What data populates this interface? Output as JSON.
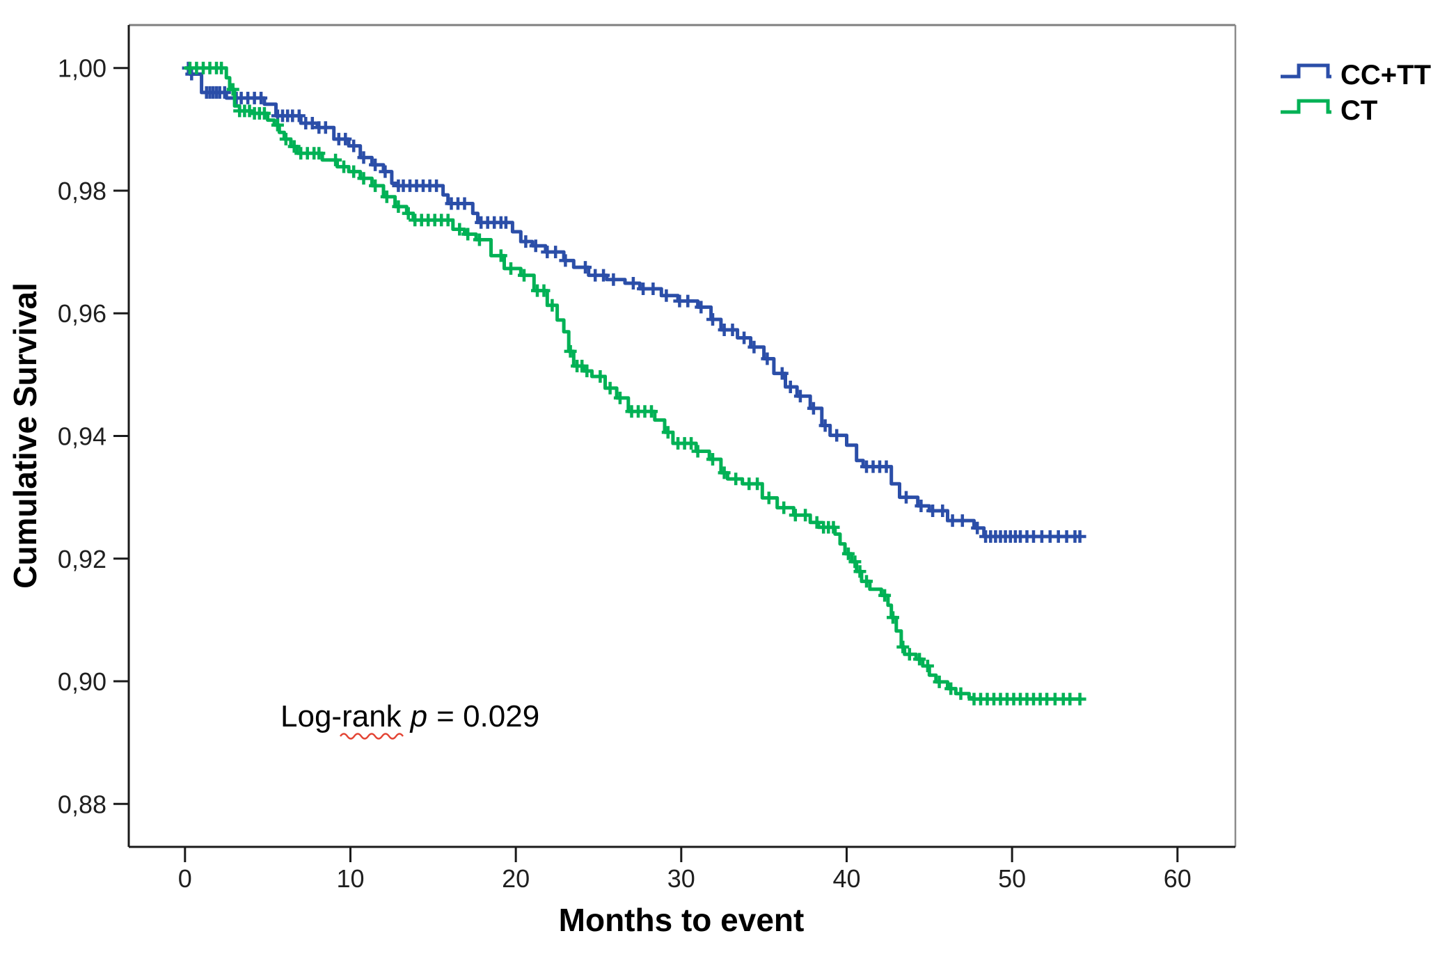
{
  "chart_data": {
    "type": "line",
    "subtype": "kaplan-meier-step-survival",
    "title": "",
    "xlabel": "Months to event",
    "ylabel": "Cumulative Survival",
    "xlim": [
      -3.4,
      63.5
    ],
    "ylim": [
      0.873,
      1.007
    ],
    "grid": false,
    "x_ticks": [
      {
        "value": 0,
        "label": "0"
      },
      {
        "value": 10,
        "label": "10"
      },
      {
        "value": 20,
        "label": "20"
      },
      {
        "value": 30,
        "label": "30"
      },
      {
        "value": 40,
        "label": "40"
      },
      {
        "value": 50,
        "label": "50"
      },
      {
        "value": 60,
        "label": "60"
      }
    ],
    "y_ticks": [
      {
        "value": 1.0,
        "label": "1,00"
      },
      {
        "value": 0.98,
        "label": "0,98"
      },
      {
        "value": 0.96,
        "label": "0,96"
      },
      {
        "value": 0.94,
        "label": "0,94"
      },
      {
        "value": 0.92,
        "label": "0,92"
      },
      {
        "value": 0.9,
        "label": "0,90"
      },
      {
        "value": 0.88,
        "label": "0,88"
      }
    ],
    "colors": {
      "axis": "#1a1a1a",
      "frame_grey": "#7f7f7f",
      "text": "#000000",
      "spellcheck_red": "#e0301e"
    },
    "legend": {
      "position": "top-right-outside",
      "entries": [
        {
          "label": "CC+TT",
          "color": "#2B4EA8"
        },
        {
          "label": "CT",
          "color": "#00B155"
        }
      ]
    },
    "annotation": {
      "full_text": "Log-rank p = 0.029",
      "parts": [
        "Log-rank",
        "p",
        "= 0.029"
      ],
      "misspell_underline_word": "rank"
    },
    "series": [
      {
        "name": "CC+TT",
        "color": "#2B4EA8",
        "steps": [
          [
            0,
            1.0
          ],
          [
            0.3,
            0.999
          ],
          [
            1.0,
            0.996
          ],
          [
            2.5,
            0.9951
          ],
          [
            4.8,
            0.9941
          ],
          [
            5.5,
            0.9922
          ],
          [
            7.0,
            0.991
          ],
          [
            8.0,
            0.9903
          ],
          [
            9.0,
            0.9884
          ],
          [
            9.9,
            0.9873
          ],
          [
            10.6,
            0.9854
          ],
          [
            11.3,
            0.9842
          ],
          [
            12.0,
            0.9831
          ],
          [
            12.5,
            0.9812
          ],
          [
            12.8,
            0.9808
          ],
          [
            15.6,
            0.9793
          ],
          [
            15.9,
            0.9779
          ],
          [
            17.4,
            0.9763
          ],
          [
            17.7,
            0.9748
          ],
          [
            19.8,
            0.9733
          ],
          [
            20.3,
            0.9717
          ],
          [
            21.0,
            0.971
          ],
          [
            21.8,
            0.97
          ],
          [
            22.9,
            0.9686
          ],
          [
            23.5,
            0.9675
          ],
          [
            24.4,
            0.9662
          ],
          [
            25.5,
            0.9655
          ],
          [
            26.6,
            0.9649
          ],
          [
            27.5,
            0.964
          ],
          [
            28.8,
            0.9629
          ],
          [
            29.8,
            0.962
          ],
          [
            31.0,
            0.961
          ],
          [
            31.8,
            0.959
          ],
          [
            32.4,
            0.9573
          ],
          [
            33.4,
            0.956
          ],
          [
            34.2,
            0.9545
          ],
          [
            35.0,
            0.9526
          ],
          [
            35.6,
            0.9502
          ],
          [
            36.3,
            0.948
          ],
          [
            37.0,
            0.9465
          ],
          [
            37.8,
            0.9445
          ],
          [
            38.5,
            0.9417
          ],
          [
            39.0,
            0.9401
          ],
          [
            40.0,
            0.9385
          ],
          [
            40.6,
            0.936
          ],
          [
            41.0,
            0.935
          ],
          [
            42.7,
            0.9322
          ],
          [
            43.2,
            0.93
          ],
          [
            44.3,
            0.9286
          ],
          [
            45.0,
            0.9278
          ],
          [
            46.1,
            0.9262
          ],
          [
            47.7,
            0.925
          ],
          [
            48.3,
            0.9236
          ],
          [
            54.2,
            0.9236
          ]
        ],
        "censor_months": [
          0.2,
          0.4,
          1.3,
          1.5,
          1.7,
          1.9,
          2.1,
          2.4,
          3.1,
          3.4,
          3.8,
          4.2,
          4.6,
          5.6,
          5.9,
          6.2,
          6.5,
          6.9,
          7.3,
          7.7,
          8.1,
          8.5,
          9.3,
          9.7,
          10.2,
          10.8,
          11.5,
          12.1,
          12.9,
          13.2,
          13.6,
          14.0,
          14.4,
          14.8,
          15.2,
          16.1,
          16.5,
          16.9,
          17.9,
          18.3,
          18.7,
          19.1,
          19.4,
          20.6,
          21.2,
          21.9,
          22.4,
          23.0,
          24.2,
          24.8,
          25.3,
          25.9,
          27.1,
          27.7,
          28.3,
          29.1,
          29.9,
          30.4,
          31.2,
          31.9,
          32.6,
          33.1,
          33.8,
          34.4,
          35.2,
          36.1,
          36.6,
          37.2,
          38.0,
          38.7,
          39.4,
          41.2,
          41.6,
          42.0,
          42.4,
          43.6,
          44.5,
          45.2,
          45.8,
          46.4,
          47.0,
          47.9,
          48.4,
          48.7,
          49.0,
          49.3,
          49.6,
          49.9,
          50.2,
          50.5,
          50.9,
          51.3,
          51.8,
          52.3,
          52.8,
          53.3,
          53.8,
          54.1
        ]
      },
      {
        "name": "CT",
        "color": "#00B155",
        "steps": [
          [
            0,
            1.0
          ],
          [
            2.5,
            0.9984
          ],
          [
            2.7,
            0.9965
          ],
          [
            3.0,
            0.9938
          ],
          [
            3.3,
            0.993
          ],
          [
            4.0,
            0.9926
          ],
          [
            5.0,
            0.9915
          ],
          [
            5.4,
            0.9907
          ],
          [
            5.7,
            0.9895
          ],
          [
            6.0,
            0.9884
          ],
          [
            6.4,
            0.9872
          ],
          [
            6.8,
            0.9861
          ],
          [
            8.3,
            0.985
          ],
          [
            9.2,
            0.9839
          ],
          [
            9.9,
            0.9831
          ],
          [
            10.6,
            0.982
          ],
          [
            11.3,
            0.9808
          ],
          [
            12.0,
            0.979
          ],
          [
            12.7,
            0.9774
          ],
          [
            13.4,
            0.9763
          ],
          [
            13.8,
            0.9752
          ],
          [
            16.2,
            0.9737
          ],
          [
            16.9,
            0.9729
          ],
          [
            17.6,
            0.972
          ],
          [
            18.5,
            0.9694
          ],
          [
            19.3,
            0.9673
          ],
          [
            20.3,
            0.9662
          ],
          [
            21.1,
            0.9637
          ],
          [
            21.9,
            0.9613
          ],
          [
            22.5,
            0.9589
          ],
          [
            22.9,
            0.957
          ],
          [
            23.2,
            0.9538
          ],
          [
            23.5,
            0.9514
          ],
          [
            24.1,
            0.9506
          ],
          [
            24.6,
            0.9497
          ],
          [
            25.4,
            0.9478
          ],
          [
            26.1,
            0.9462
          ],
          [
            26.8,
            0.944
          ],
          [
            28.4,
            0.9426
          ],
          [
            29.0,
            0.9406
          ],
          [
            29.5,
            0.9388
          ],
          [
            30.9,
            0.9375
          ],
          [
            31.7,
            0.9362
          ],
          [
            32.4,
            0.934
          ],
          [
            32.8,
            0.933
          ],
          [
            33.7,
            0.9322
          ],
          [
            34.9,
            0.9299
          ],
          [
            35.8,
            0.9283
          ],
          [
            36.8,
            0.9271
          ],
          [
            37.8,
            0.9259
          ],
          [
            38.3,
            0.9251
          ],
          [
            39.3,
            0.924
          ],
          [
            39.6,
            0.9224
          ],
          [
            39.9,
            0.9208
          ],
          [
            40.3,
            0.9195
          ],
          [
            40.6,
            0.9179
          ],
          [
            40.9,
            0.9163
          ],
          [
            41.4,
            0.915
          ],
          [
            42.1,
            0.914
          ],
          [
            42.5,
            0.9124
          ],
          [
            42.7,
            0.9104
          ],
          [
            43.0,
            0.9082
          ],
          [
            43.3,
            0.9056
          ],
          [
            43.5,
            0.9044
          ],
          [
            44.2,
            0.9036
          ],
          [
            44.6,
            0.9025
          ],
          [
            45.0,
            0.901
          ],
          [
            45.4,
            0.8999
          ],
          [
            46.1,
            0.8988
          ],
          [
            46.6,
            0.898
          ],
          [
            47.4,
            0.8973
          ],
          [
            47.6,
            0.8971
          ],
          [
            54.2,
            0.8971
          ]
        ],
        "censor_months": [
          0.3,
          0.7,
          1.1,
          1.5,
          1.9,
          2.2,
          2.9,
          3.3,
          3.6,
          3.9,
          4.2,
          4.5,
          4.8,
          5.6,
          6.1,
          6.6,
          7.0,
          7.4,
          7.8,
          8.1,
          9.1,
          9.6,
          10.2,
          10.8,
          11.5,
          12.2,
          12.9,
          13.5,
          13.9,
          14.3,
          14.7,
          15.1,
          15.5,
          15.9,
          16.6,
          17.1,
          17.8,
          19.1,
          19.7,
          20.5,
          21.3,
          21.7,
          22.2,
          23.3,
          23.7,
          24.0,
          24.3,
          25.1,
          25.7,
          26.3,
          27.0,
          27.4,
          27.8,
          28.2,
          29.2,
          29.8,
          30.2,
          30.6,
          31.0,
          31.9,
          32.6,
          33.3,
          34.1,
          34.6,
          35.3,
          36.2,
          36.9,
          37.5,
          38.2,
          38.6,
          38.9,
          39.2,
          40.1,
          40.5,
          40.8,
          41.2,
          42.3,
          42.8,
          43.4,
          43.8,
          44.4,
          44.9,
          45.6,
          46.3,
          46.9,
          47.7,
          48.1,
          48.5,
          48.9,
          49.3,
          49.7,
          50.1,
          50.5,
          50.9,
          51.3,
          51.7,
          52.1,
          52.6,
          53.1,
          53.5,
          54.1
        ]
      }
    ]
  }
}
